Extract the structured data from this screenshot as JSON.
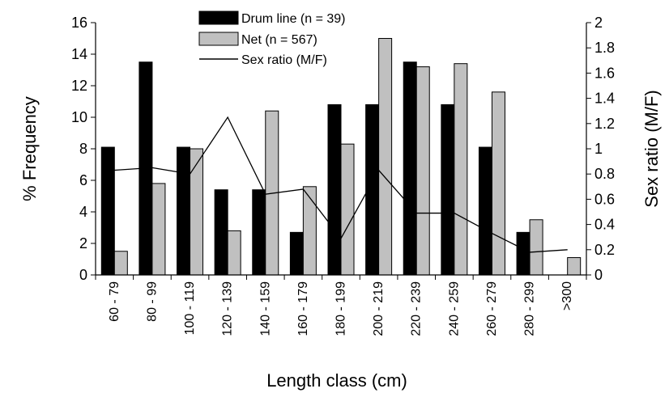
{
  "chart_data": {
    "type": "bar",
    "categories": [
      "60 - 79",
      "80 - 99",
      "100 - 119",
      "120 - 139",
      "140 - 159",
      "160 - 179",
      "180 - 199",
      "200 - 219",
      "220 - 239",
      "240 - 259",
      "260 - 279",
      "280 - 299",
      ">300"
    ],
    "series": [
      {
        "name": "Drum line (n = 39)",
        "kind": "bar",
        "axis": "left",
        "color": "#000000",
        "values": [
          8.1,
          13.5,
          8.1,
          5.4,
          5.4,
          2.7,
          10.8,
          10.8,
          13.5,
          10.8,
          8.1,
          2.7,
          0
        ]
      },
      {
        "name": "Net (n = 567)",
        "kind": "bar",
        "axis": "left",
        "color": "#c0c0c0",
        "values": [
          1.5,
          5.8,
          8.0,
          2.8,
          10.4,
          5.6,
          8.3,
          15.0,
          13.2,
          13.4,
          11.6,
          3.5,
          1.1
        ]
      },
      {
        "name": "Sex ratio (M/F)",
        "kind": "line",
        "axis": "right",
        "color": "#000000",
        "values": [
          0.83,
          0.85,
          0.8,
          1.25,
          0.64,
          0.68,
          0.29,
          0.83,
          0.49,
          0.49,
          0.33,
          0.18,
          0.2
        ]
      }
    ],
    "xlabel": "Length class (cm)",
    "ylabel": "% Frequency",
    "y2label": "Sex ratio (M/F)",
    "ylim": [
      0,
      16
    ],
    "y2lim": [
      0,
      2
    ],
    "yticks": [
      "0",
      "2",
      "4",
      "6",
      "8",
      "10",
      "12",
      "14",
      "16"
    ],
    "y2ticks": [
      "0",
      "0.2",
      "0.4",
      "0.6",
      "0.8",
      "1",
      "1.2",
      "1.4",
      "1.6",
      "1.8",
      "2"
    ],
    "legend": "top-center",
    "grid": false
  }
}
